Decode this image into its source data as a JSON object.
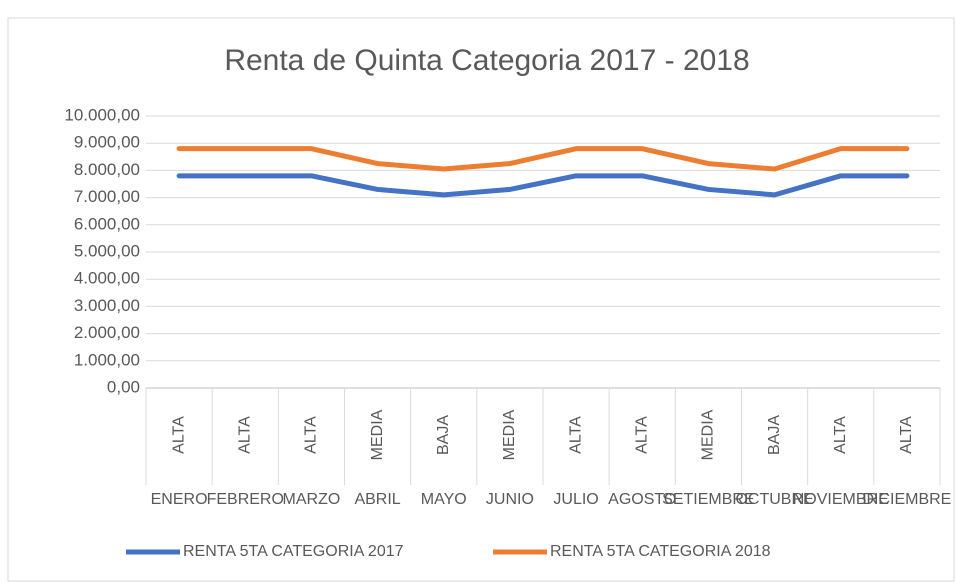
{
  "chart_data": {
    "type": "line",
    "title": "Renta de Quinta Categoria 2017 - 2018",
    "categories": [
      "ENERO",
      "FEBRERO",
      "MARZO",
      "ABRIL",
      "MAYO",
      "JUNIO",
      "JULIO",
      "AGOSTO",
      "SETIEMBRE",
      "OCTUBRE",
      "NOVIEMBRE",
      "DICIEMBRE"
    ],
    "category_levels": [
      "ALTA",
      "ALTA",
      "ALTA",
      "MEDIA",
      "BAJA",
      "MEDIA",
      "ALTA",
      "ALTA",
      "MEDIA",
      "BAJA",
      "ALTA",
      "ALTA"
    ],
    "series": [
      {
        "name": "RENTA 5TA CATEGORIA 2017",
        "color": "#4472c4",
        "values": [
          7800,
          7800,
          7800,
          7300,
          7100,
          7300,
          7800,
          7800,
          7300,
          7100,
          7800,
          7800
        ]
      },
      {
        "name": "RENTA 5TA CATEGORIA 2018",
        "color": "#ed7d31",
        "values": [
          8800,
          8800,
          8800,
          8250,
          8050,
          8250,
          8800,
          8800,
          8250,
          8050,
          8800,
          8800
        ]
      }
    ],
    "ylim": [
      0,
      10000
    ],
    "yticks": [
      {
        "value": 0,
        "label": "0,00"
      },
      {
        "value": 1000,
        "label": "1.000,00"
      },
      {
        "value": 2000,
        "label": "2.000,00"
      },
      {
        "value": 3000,
        "label": "3.000,00"
      },
      {
        "value": 4000,
        "label": "4.000,00"
      },
      {
        "value": 5000,
        "label": "5.000,00"
      },
      {
        "value": 6000,
        "label": "6.000,00"
      },
      {
        "value": 7000,
        "label": "7.000,00"
      },
      {
        "value": 8000,
        "label": "8.000,00"
      },
      {
        "value": 9000,
        "label": "9.000,00"
      },
      {
        "value": 10000,
        "label": "10.000,00"
      }
    ],
    "grid": true,
    "legend": "bottom"
  }
}
